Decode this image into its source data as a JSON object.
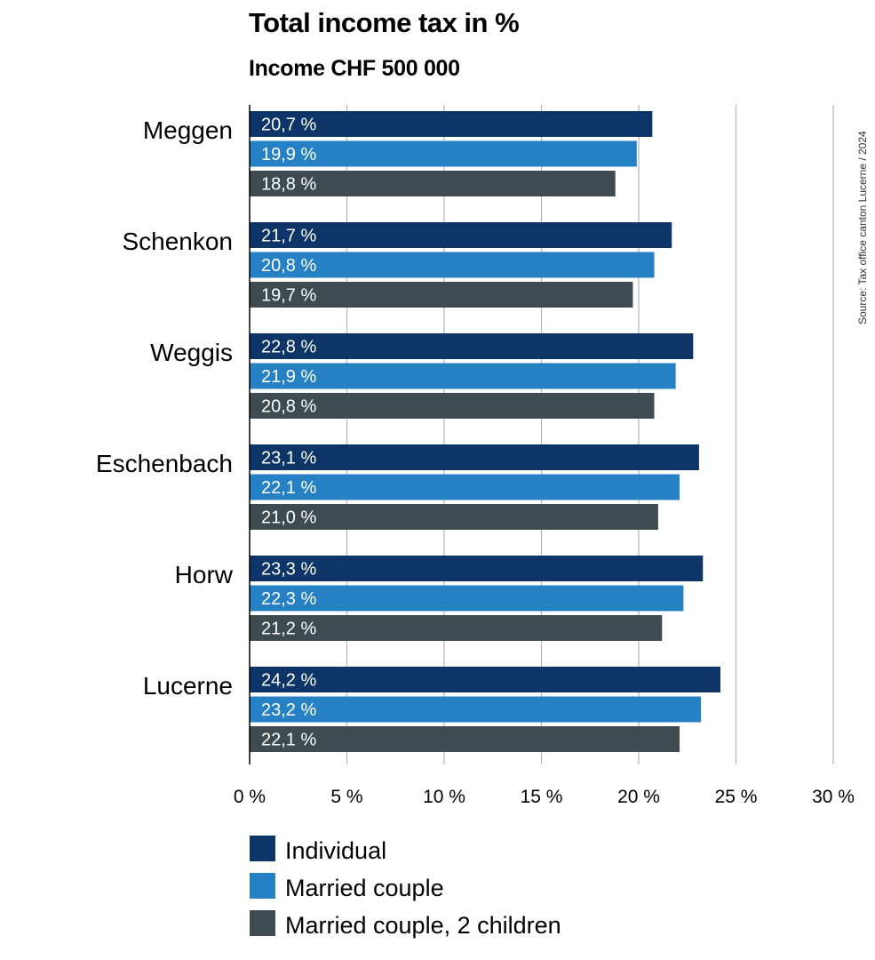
{
  "chart_data": {
    "type": "bar",
    "orientation": "horizontal",
    "title": "Total income tax in %",
    "subtitle": "Income CHF 500 000",
    "source": "Source: Tax office canton Lucerne / 2024",
    "categories": [
      "Meggen",
      "Schenkon",
      "Weggis",
      "Eschenbach",
      "Horw",
      "Lucerne"
    ],
    "series": [
      {
        "name": "Individual",
        "color": "#0d3567",
        "values": [
          20.7,
          21.7,
          22.8,
          23.1,
          23.3,
          24.2
        ],
        "labels": [
          "20,7 %",
          "21,7 %",
          "22,8 %",
          "23,1 %",
          "23,3 %",
          "24,2 %"
        ]
      },
      {
        "name": "Married couple",
        "color": "#2680c4",
        "values": [
          19.9,
          20.8,
          21.9,
          22.1,
          22.3,
          23.2
        ],
        "labels": [
          "19,9 %",
          "20,8 %",
          "21,9 %",
          "22,1 %",
          "22,3 %",
          "23,2 %"
        ]
      },
      {
        "name": "Married couple, 2 children",
        "color": "#3e4b51",
        "values": [
          18.8,
          19.7,
          20.8,
          21.0,
          21.2,
          22.1
        ],
        "labels": [
          "18,8 %",
          "19,7 %",
          "20,8 %",
          "21,0 %",
          "21,2 %",
          "22,1 %"
        ]
      }
    ],
    "xlim": [
      0,
      30
    ],
    "xticks": [
      0,
      5,
      10,
      15,
      20,
      25,
      30
    ],
    "xtick_labels": [
      "0 %",
      "5 %",
      "10 %",
      "15 %",
      "20 %",
      "25 %",
      "30 %"
    ],
    "grid": true,
    "legend_position": "bottom-left"
  }
}
